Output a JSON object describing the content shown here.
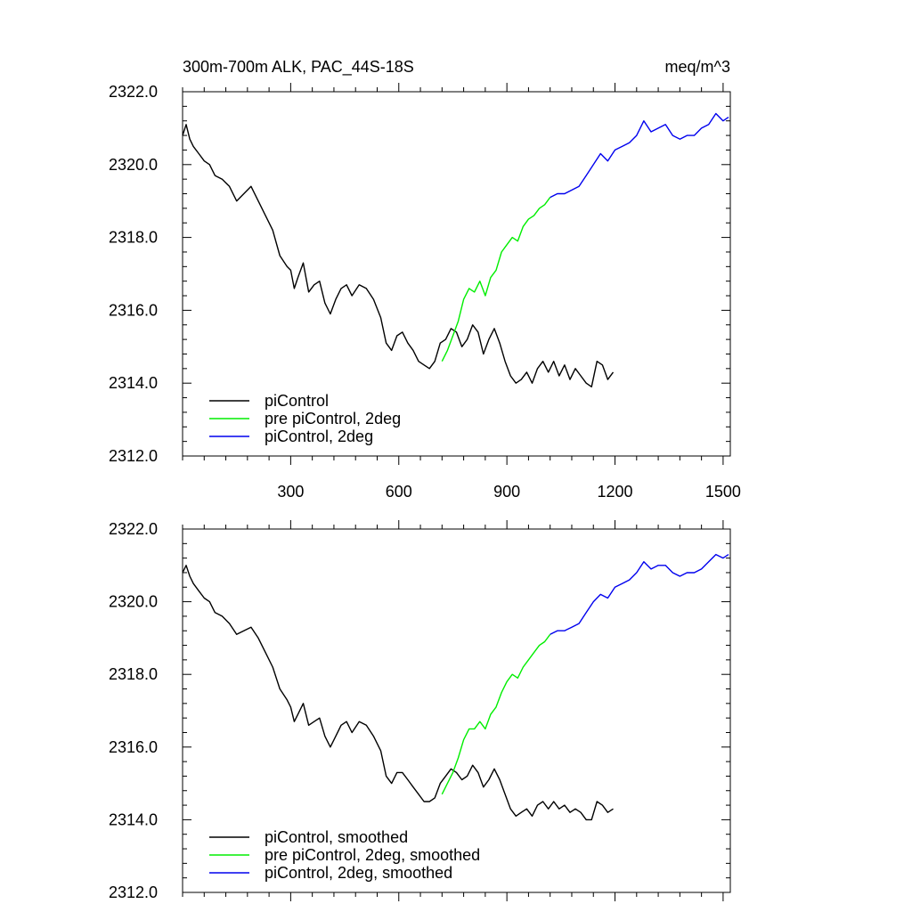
{
  "chart_data": [
    {
      "type": "line",
      "title_left": "300m-700m ALK, PAC_44S-18S",
      "title_right": "meq/m^3",
      "xlim": [
        0,
        1520
      ],
      "ylim": [
        2312.0,
        2322.0
      ],
      "x_ticks": [
        300,
        600,
        900,
        1200,
        1500
      ],
      "x_tick_labels": [
        "300",
        "600",
        "900",
        "1200",
        "1500"
      ],
      "y_ticks": [
        2312.0,
        2314.0,
        2316.0,
        2318.0,
        2320.0,
        2322.0
      ],
      "y_tick_labels": [
        "2312.0",
        "2314.0",
        "2316.0",
        "2318.0",
        "2320.0",
        "2322.0"
      ],
      "legend_position": "bottom-left",
      "series": [
        {
          "name": "piControl",
          "color": "#000000",
          "x": [
            0,
            10,
            20,
            30,
            45,
            60,
            75,
            90,
            110,
            130,
            150,
            170,
            190,
            210,
            230,
            250,
            270,
            290,
            300,
            310,
            320,
            335,
            350,
            365,
            380,
            395,
            410,
            425,
            440,
            455,
            470,
            490,
            510,
            530,
            550,
            565,
            580,
            595,
            610,
            625,
            640,
            655,
            670,
            685,
            700,
            715,
            730,
            745,
            760,
            775,
            790,
            805,
            820,
            835,
            850,
            865,
            880,
            895,
            910,
            925,
            940,
            955,
            970,
            985,
            1000,
            1015,
            1030,
            1045,
            1060,
            1075,
            1090,
            1105,
            1120,
            1135,
            1150,
            1165,
            1180,
            1195
          ],
          "y": [
            2320.8,
            2321.1,
            2320.7,
            2320.5,
            2320.3,
            2320.1,
            2320.0,
            2319.7,
            2319.6,
            2319.4,
            2319.0,
            2319.2,
            2319.4,
            2319.0,
            2318.6,
            2318.2,
            2317.5,
            2317.2,
            2317.1,
            2316.6,
            2316.9,
            2317.3,
            2316.5,
            2316.7,
            2316.8,
            2316.2,
            2315.9,
            2316.3,
            2316.6,
            2316.7,
            2316.4,
            2316.7,
            2316.6,
            2316.3,
            2315.8,
            2315.1,
            2314.9,
            2315.3,
            2315.4,
            2315.1,
            2314.9,
            2314.6,
            2314.5,
            2314.4,
            2314.6,
            2315.1,
            2315.2,
            2315.5,
            2315.4,
            2315.0,
            2315.2,
            2315.6,
            2315.4,
            2314.8,
            2315.2,
            2315.5,
            2315.1,
            2314.6,
            2314.2,
            2314.0,
            2314.1,
            2314.3,
            2314.0,
            2314.4,
            2314.6,
            2314.3,
            2314.6,
            2314.2,
            2314.5,
            2314.1,
            2314.4,
            2314.2,
            2314.0,
            2313.9,
            2314.6,
            2314.5,
            2314.1,
            2314.3
          ]
        },
        {
          "name": "pre piControl, 2deg",
          "color": "#00ee00",
          "x": [
            720,
            735,
            750,
            765,
            780,
            795,
            810,
            825,
            840,
            855,
            870,
            885,
            900,
            915,
            930,
            945,
            960,
            975,
            990,
            1005,
            1020
          ],
          "y": [
            2314.6,
            2314.9,
            2315.3,
            2315.7,
            2316.3,
            2316.6,
            2316.5,
            2316.8,
            2316.4,
            2316.9,
            2317.1,
            2317.6,
            2317.8,
            2318.0,
            2317.9,
            2318.3,
            2318.5,
            2318.6,
            2318.8,
            2318.9,
            2319.1
          ]
        },
        {
          "name": "piControl, 2deg",
          "color": "#0000ee",
          "x": [
            1020,
            1040,
            1060,
            1080,
            1100,
            1120,
            1140,
            1160,
            1180,
            1200,
            1220,
            1240,
            1260,
            1280,
            1300,
            1320,
            1340,
            1360,
            1380,
            1400,
            1420,
            1440,
            1460,
            1480,
            1500,
            1515
          ],
          "y": [
            2319.1,
            2319.2,
            2319.2,
            2319.3,
            2319.4,
            2319.7,
            2320.0,
            2320.3,
            2320.1,
            2320.4,
            2320.5,
            2320.6,
            2320.8,
            2321.2,
            2320.9,
            2321.0,
            2321.1,
            2320.8,
            2320.7,
            2320.8,
            2320.8,
            2321.0,
            2321.1,
            2321.4,
            2321.2,
            2321.3
          ]
        }
      ]
    },
    {
      "type": "line",
      "xlim": [
        0,
        1520
      ],
      "ylim": [
        2312.0,
        2322.0
      ],
      "x_ticks": [
        300,
        600,
        900,
        1200,
        1500
      ],
      "y_ticks": [
        2312.0,
        2314.0,
        2316.0,
        2318.0,
        2320.0,
        2322.0
      ],
      "y_tick_labels": [
        "2312.0",
        "2314.0",
        "2316.0",
        "2318.0",
        "2320.0",
        "2322.0"
      ],
      "legend_position": "bottom-left",
      "series": [
        {
          "name": "piControl, smoothed",
          "color": "#000000",
          "x": [
            0,
            10,
            20,
            30,
            45,
            60,
            75,
            90,
            110,
            130,
            150,
            170,
            190,
            210,
            230,
            250,
            270,
            290,
            300,
            310,
            320,
            335,
            350,
            365,
            380,
            395,
            410,
            425,
            440,
            455,
            470,
            490,
            510,
            530,
            550,
            565,
            580,
            595,
            610,
            625,
            640,
            655,
            670,
            685,
            700,
            715,
            730,
            745,
            760,
            775,
            790,
            805,
            820,
            835,
            850,
            865,
            880,
            895,
            910,
            925,
            940,
            955,
            970,
            985,
            1000,
            1015,
            1030,
            1045,
            1060,
            1075,
            1090,
            1105,
            1120,
            1135,
            1150,
            1165,
            1180,
            1195
          ],
          "y": [
            2320.8,
            2321.0,
            2320.7,
            2320.5,
            2320.3,
            2320.1,
            2320.0,
            2319.7,
            2319.6,
            2319.4,
            2319.1,
            2319.2,
            2319.3,
            2319.0,
            2318.6,
            2318.2,
            2317.6,
            2317.3,
            2317.1,
            2316.7,
            2316.9,
            2317.2,
            2316.6,
            2316.7,
            2316.8,
            2316.3,
            2316.0,
            2316.3,
            2316.6,
            2316.7,
            2316.4,
            2316.7,
            2316.6,
            2316.3,
            2315.9,
            2315.2,
            2315.0,
            2315.3,
            2315.3,
            2315.1,
            2314.9,
            2314.7,
            2314.5,
            2314.5,
            2314.6,
            2315.0,
            2315.2,
            2315.4,
            2315.3,
            2315.1,
            2315.2,
            2315.5,
            2315.3,
            2314.9,
            2315.1,
            2315.4,
            2315.1,
            2314.7,
            2314.3,
            2314.1,
            2314.2,
            2314.3,
            2314.1,
            2314.4,
            2314.5,
            2314.3,
            2314.5,
            2314.3,
            2314.4,
            2314.2,
            2314.3,
            2314.2,
            2314.0,
            2314.0,
            2314.5,
            2314.4,
            2314.2,
            2314.3
          ]
        },
        {
          "name": "pre piControl, 2deg, smoothed",
          "color": "#00ee00",
          "x": [
            720,
            735,
            750,
            765,
            780,
            795,
            810,
            825,
            840,
            855,
            870,
            885,
            900,
            915,
            930,
            945,
            960,
            975,
            990,
            1005,
            1020
          ],
          "y": [
            2314.7,
            2315.0,
            2315.3,
            2315.7,
            2316.2,
            2316.5,
            2316.5,
            2316.7,
            2316.5,
            2316.9,
            2317.1,
            2317.5,
            2317.8,
            2318.0,
            2317.9,
            2318.2,
            2318.4,
            2318.6,
            2318.8,
            2318.9,
            2319.1
          ]
        },
        {
          "name": "piControl, 2deg, smoothed",
          "color": "#0000ee",
          "x": [
            1020,
            1040,
            1060,
            1080,
            1100,
            1120,
            1140,
            1160,
            1180,
            1200,
            1220,
            1240,
            1260,
            1280,
            1300,
            1320,
            1340,
            1360,
            1380,
            1400,
            1420,
            1440,
            1460,
            1480,
            1500,
            1515
          ],
          "y": [
            2319.1,
            2319.2,
            2319.2,
            2319.3,
            2319.4,
            2319.7,
            2320.0,
            2320.2,
            2320.1,
            2320.4,
            2320.5,
            2320.6,
            2320.8,
            2321.1,
            2320.9,
            2321.0,
            2321.0,
            2320.8,
            2320.7,
            2320.8,
            2320.8,
            2320.9,
            2321.1,
            2321.3,
            2321.2,
            2321.3
          ]
        }
      ]
    }
  ]
}
